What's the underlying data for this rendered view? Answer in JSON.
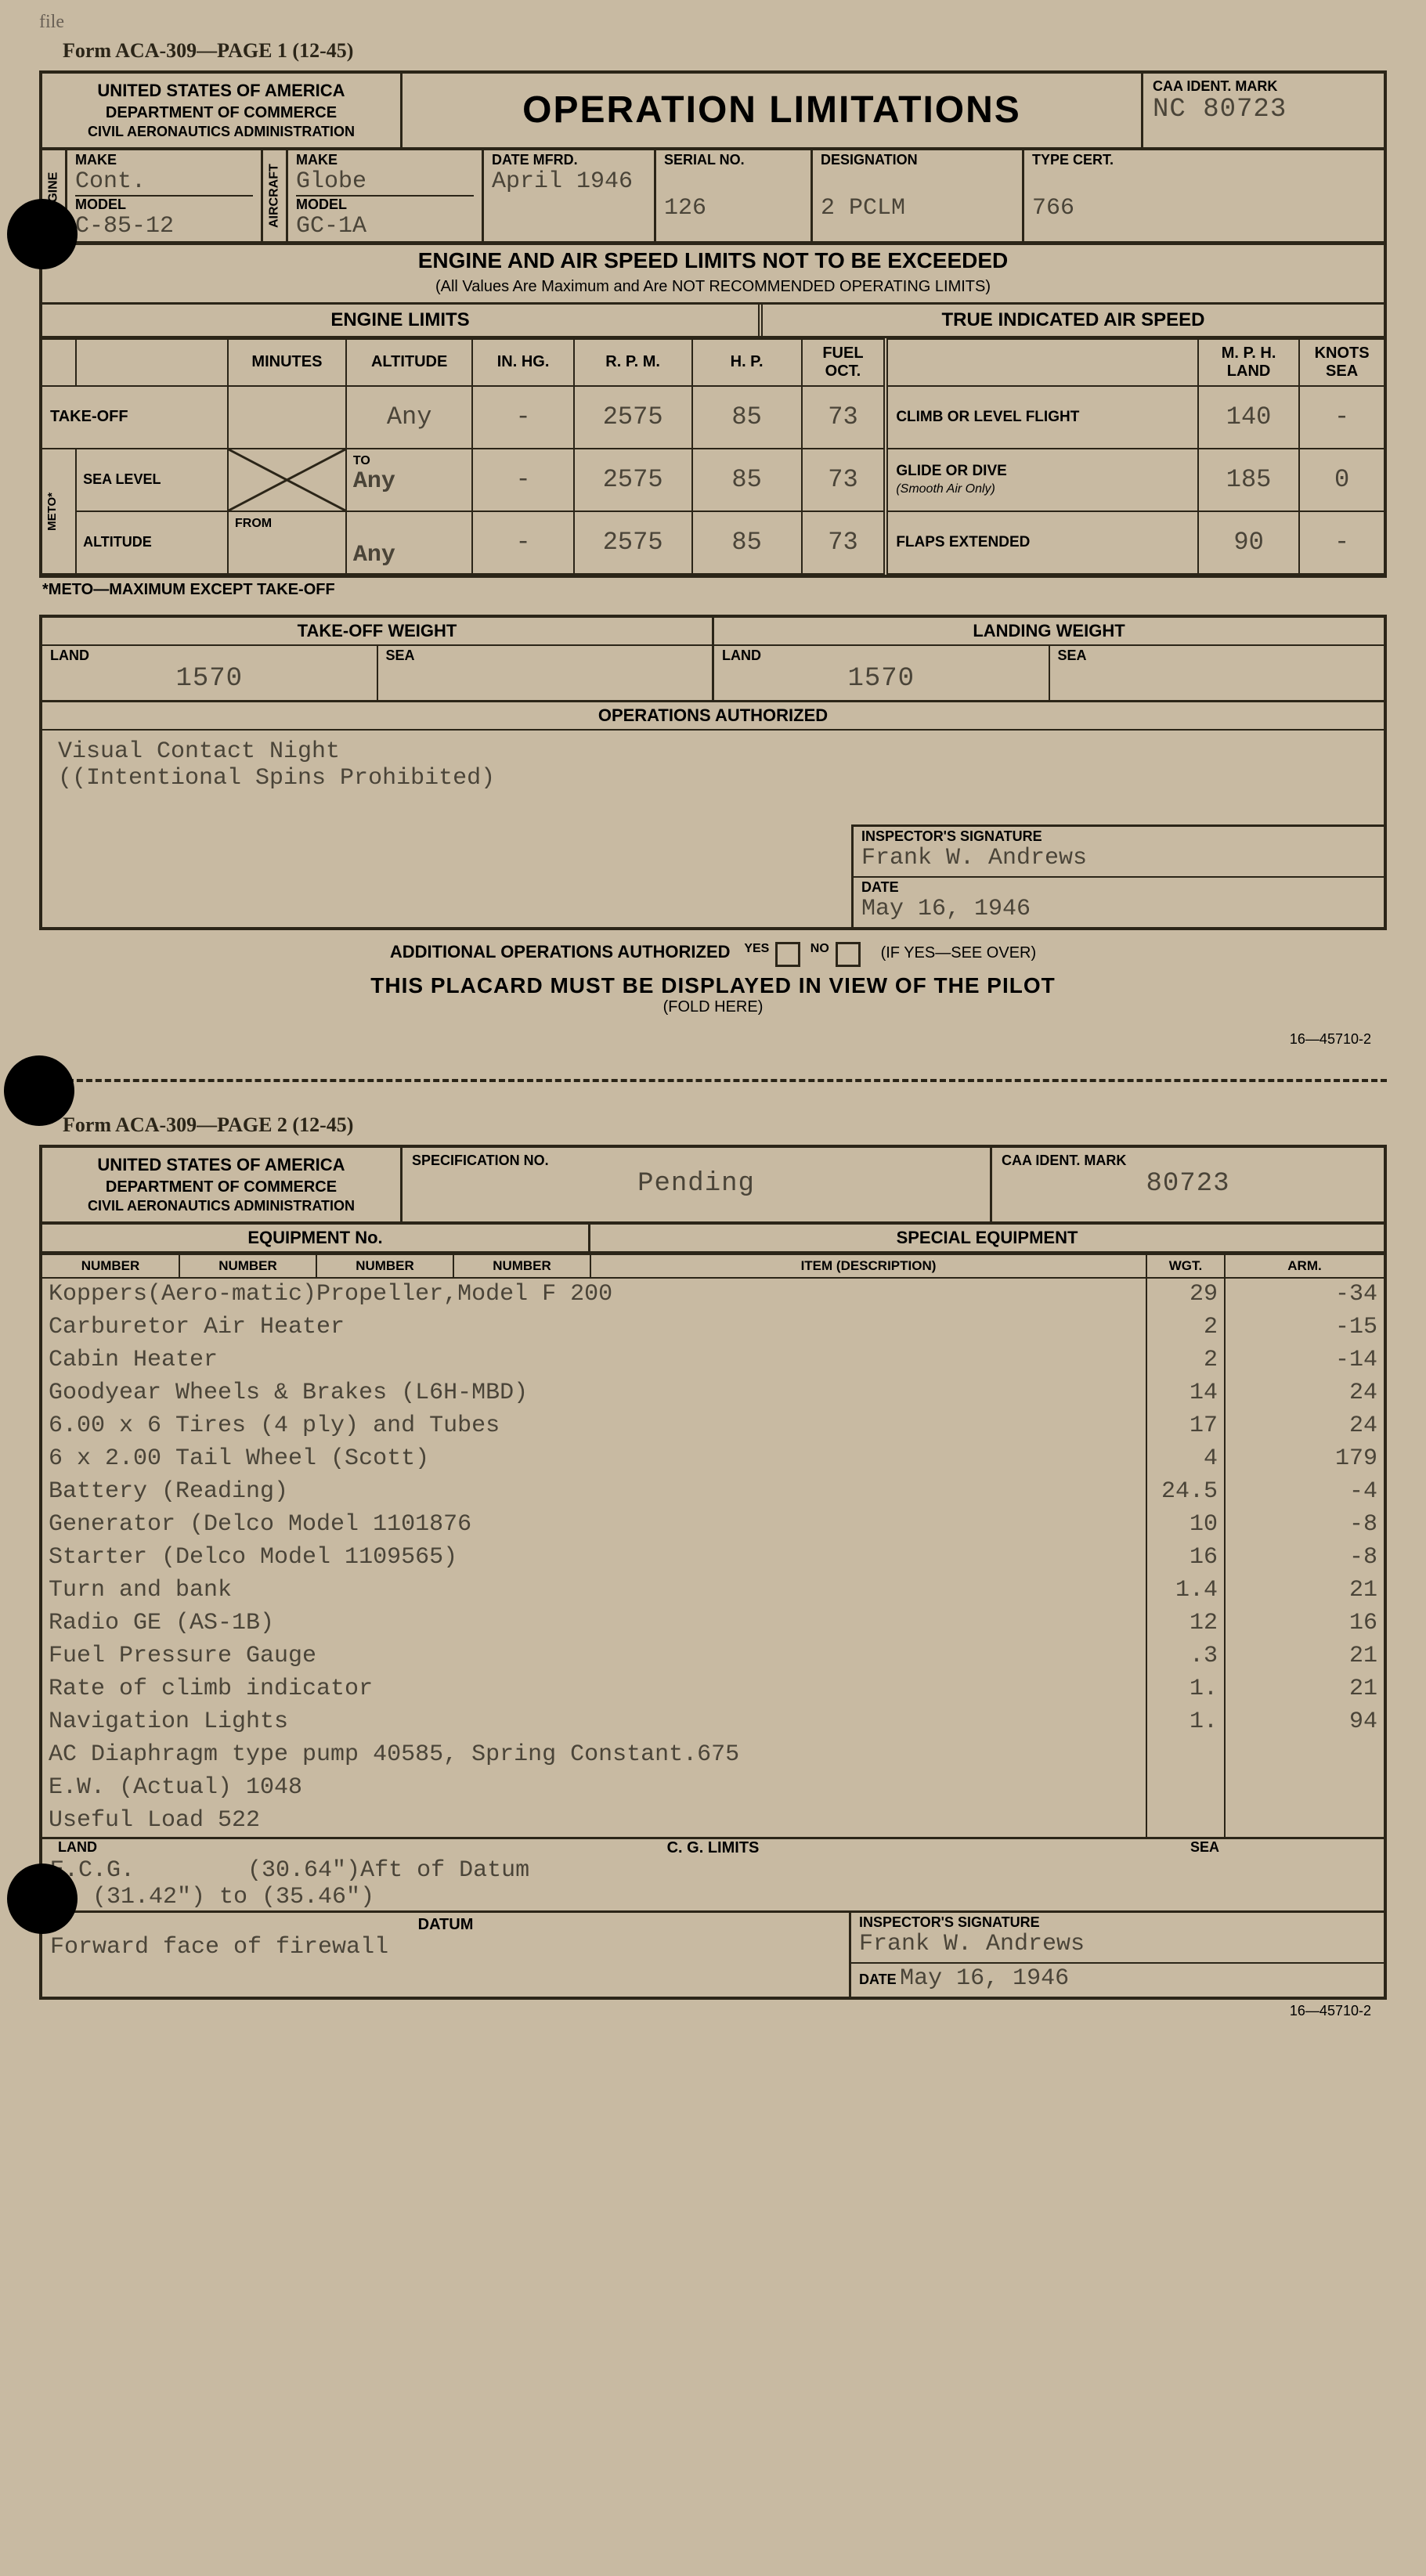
{
  "handwritten_note": "file",
  "page1": {
    "form_label": "Form ACA-309—PAGE 1 (12-45)",
    "header": {
      "org_line1": "UNITED STATES OF AMERICA",
      "org_line2": "DEPARTMENT OF COMMERCE",
      "org_line3": "CIVIL AERONAUTICS ADMINISTRATION",
      "title": "OPERATION LIMITATIONS",
      "ident_label": "CAA IDENT. MARK",
      "ident_value": "NC 80723"
    },
    "row2": {
      "engine_label": "ENGINE",
      "engine_make_label": "MAKE",
      "engine_make": "Cont.",
      "engine_model_label": "MODEL",
      "engine_model": "C-85-12",
      "aircraft_label": "AIRCRAFT",
      "aircraft_make_label": "MAKE",
      "aircraft_make": "Globe",
      "aircraft_model_label": "MODEL",
      "aircraft_model": "GC-1A",
      "date_mfrd_label": "DATE MFRD.",
      "date_mfrd": "April 1946",
      "serial_label": "SERIAL NO.",
      "serial": "126",
      "designation_label": "DESIGNATION",
      "designation": "2 PCLM",
      "type_cert_label": "TYPE CERT.",
      "type_cert": "766"
    },
    "section_title": "ENGINE AND AIR SPEED LIMITS NOT TO BE EXCEEDED",
    "section_sub": "(All Values Are Maximum and Are NOT RECOMMENDED OPERATING LIMITS)",
    "engine_limits_label": "ENGINE LIMITS",
    "air_speed_label": "TRUE INDICATED AIR SPEED",
    "columns": {
      "minutes": "MINUTES",
      "altitude": "ALTITUDE",
      "inhg": "IN. HG.",
      "rpm": "R. P. M.",
      "hp": "H. P.",
      "fuel": "FUEL OCT.",
      "mph": "M. P. H. LAND",
      "knots": "KNOTS SEA"
    },
    "rows": {
      "takeoff_label": "TAKE-OFF",
      "takeoff": {
        "minutes": "",
        "altitude": "Any",
        "inhg": "-",
        "rpm": "2575",
        "hp": "85",
        "fuel": "73"
      },
      "meto_label": "METO*",
      "sea_level_label": "SEA LEVEL",
      "to_label": "TO",
      "sea": {
        "altitude": "Any",
        "inhg": "-",
        "rpm": "2575",
        "hp": "85",
        "fuel": "73"
      },
      "altitude_label": "ALTITUDE",
      "from_label": "FROM",
      "alt": {
        "altitude": "Any",
        "inhg": "-",
        "rpm": "2575",
        "hp": "85",
        "fuel": "73"
      },
      "climb_label": "CLIMB OR LEVEL FLIGHT",
      "climb": {
        "mph": "140",
        "knots": "-"
      },
      "glide_label": "GLIDE OR DIVE",
      "glide_sub": "(Smooth Air Only)",
      "glide": {
        "mph": "185",
        "knots": "0"
      },
      "flaps_label": "FLAPS EXTENDED",
      "flaps": {
        "mph": "90",
        "knots": "-"
      }
    },
    "footnote": "*METO—MAXIMUM EXCEPT TAKE-OFF",
    "takeoff_weight_label": "TAKE-OFF WEIGHT",
    "landing_weight_label": "LANDING WEIGHT",
    "land_label": "LAND",
    "sea_label": "SEA",
    "takeoff_land": "1570",
    "takeoff_sea": "",
    "landing_land": "1570",
    "landing_sea": "",
    "ops_auth_label": "OPERATIONS AUTHORIZED",
    "ops_text_line1": "Visual Contact Night",
    "ops_text_line2": "((Intentional Spins Prohibited)",
    "sig_label": "INSPECTOR'S SIGNATURE",
    "sig_value": "Frank W. Andrews",
    "date_label": "DATE",
    "date_value": "May 16, 1946",
    "addl_ops_label": "ADDITIONAL OPERATIONS AUTHORIZED",
    "yes": "YES",
    "no": "NO",
    "see_over": "(IF YES—SEE OVER)",
    "placard_line": "THIS PLACARD MUST BE DISPLAYED IN VIEW OF THE PILOT",
    "fold_here": "(FOLD HERE)",
    "footer_code": "16—45710-2"
  },
  "page2": {
    "form_label": "Form ACA-309—PAGE 2 (12-45)",
    "header": {
      "org_line1": "UNITED STATES OF AMERICA",
      "org_line2": "DEPARTMENT OF COMMERCE",
      "org_line3": "CIVIL AERONAUTICS ADMINISTRATION",
      "spec_label": "SPECIFICATION NO.",
      "spec_value": "Pending",
      "ident_label": "CAA IDENT. MARK",
      "ident_value": "80723"
    },
    "equipment_no_label": "EQUIPMENT No.",
    "special_equipment_label": "SPECIAL EQUIPMENT",
    "col_number": "NUMBER",
    "col_item": "ITEM (DESCRIPTION)",
    "col_wgt": "WGT.",
    "col_arm": "ARM.",
    "rows": [
      {
        "desc": "Koppers(Aero-matic)Propeller,Model F 200",
        "wgt": "29",
        "arm": "-34"
      },
      {
        "desc": "Carburetor Air Heater",
        "wgt": "2",
        "arm": "-15"
      },
      {
        "desc": "Cabin Heater",
        "wgt": "2",
        "arm": "-14"
      },
      {
        "desc": "Goodyear Wheels & Brakes (L6H-MBD)",
        "wgt": "14",
        "arm": "24"
      },
      {
        "desc": "6.00 x 6 Tires (4 ply) and Tubes",
        "wgt": "17",
        "arm": "24"
      },
      {
        "desc": "6 x 2.00 Tail Wheel (Scott)",
        "wgt": "4",
        "arm": "179"
      },
      {
        "desc": "Battery (Reading)",
        "wgt": "24.5",
        "arm": "-4"
      },
      {
        "desc": "Generator (Delco Model 1101876",
        "wgt": "10",
        "arm": "-8"
      },
      {
        "desc": "Starter (Delco Model 1109565)",
        "wgt": "16",
        "arm": "-8"
      },
      {
        "desc": "Turn and bank",
        "wgt": "1.4",
        "arm": "21"
      },
      {
        "desc": "Radio GE (AS-1B)",
        "wgt": "12",
        "arm": "16"
      },
      {
        "desc": "Fuel Pressure Gauge",
        "wgt": ".3",
        "arm": "21"
      },
      {
        "desc": "Rate of climb indicator",
        "wgt": "1.",
        "arm": "21"
      },
      {
        "desc": "Navigation Lights",
        "wgt": "1.",
        "arm": "94"
      },
      {
        "desc": "AC Diaphragm type pump 40585, Spring Constant.675",
        "wgt": "",
        "arm": ""
      },
      {
        "desc": "E.W. (Actual) 1048",
        "wgt": "",
        "arm": ""
      },
      {
        "desc": "Useful Load      522",
        "wgt": "",
        "arm": ""
      }
    ],
    "cg_label": "C. G. LIMITS",
    "cg_land_label": "LAND",
    "cg_sea_label": "SEA",
    "cg_line1": "E.C.G.        (30.64\")Aft of Datum",
    "cg_line2": "   (31.42\") to (35.46\")",
    "datum_label": "DATUM",
    "datum_value": "Forward face of firewall",
    "sig_label": "INSPECTOR'S SIGNATURE",
    "sig_value": "Frank W. Andrews",
    "date_label": "DATE",
    "date_value": "May 16, 1946",
    "footer_code": "16—45710-2"
  }
}
